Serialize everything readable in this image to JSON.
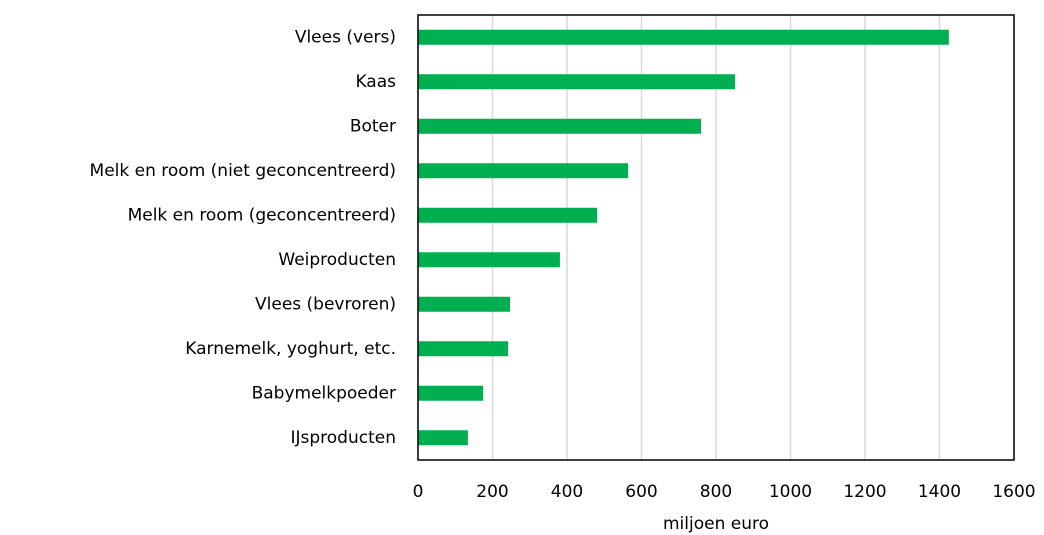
{
  "chart_data": {
    "type": "barh",
    "categories": [
      "Vlees (vers)",
      "Kaas",
      "Boter",
      "Melk en room (niet geconcentreerd)",
      "Melk en room (geconcentreerd)",
      "Weiproducten",
      "Vlees (bevroren)",
      "Karnemelk, yoghurt, etc.",
      "Babymelkpoeder",
      "IJsproducten"
    ],
    "values": [
      1425,
      851,
      760,
      564,
      481,
      381,
      247,
      242,
      175,
      134
    ],
    "color": "#00b050",
    "xlabel": "miljoen euro",
    "xlim": [
      0,
      1600
    ],
    "xticks": [
      0,
      200,
      400,
      600,
      800,
      1000,
      1200,
      1400,
      1600
    ],
    "grid": true
  }
}
